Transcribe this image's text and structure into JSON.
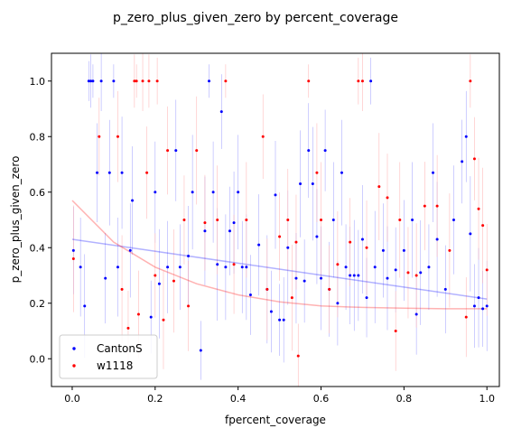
{
  "chart_data": {
    "type": "scatter",
    "title": "p_zero_plus_given_zero by percent_coverage",
    "xlabel": "fpercent_coverage",
    "ylabel": "p_zero_plus_given_zero",
    "xlim": [
      -0.05,
      1.03
    ],
    "ylim": [
      -0.1,
      1.1
    ],
    "xticks": [
      0.0,
      0.2,
      0.4,
      0.6,
      0.8,
      1.0
    ],
    "xtick_labels": [
      "0.0",
      "0.2",
      "0.4",
      "0.6",
      "0.8",
      "1.0"
    ],
    "yticks": [
      0.0,
      0.2,
      0.4,
      0.6,
      0.8,
      1.0
    ],
    "ytick_labels": [
      "0.0",
      "0.2",
      "0.4",
      "0.6",
      "0.8",
      "1.0"
    ],
    "grid": false,
    "legend": {
      "placement": "lower-left",
      "entries": [
        "CantonS",
        "w1118"
      ]
    },
    "series": [
      {
        "name": "CantonS",
        "color": "#0000ff",
        "errorbar_color": "#9999ff",
        "x": [
          0.003,
          0.02,
          0.03,
          0.04,
          0.045,
          0.05,
          0.06,
          0.07,
          0.08,
          0.09,
          0.1,
          0.11,
          0.12,
          0.14,
          0.145,
          0.19,
          0.2,
          0.21,
          0.23,
          0.25,
          0.26,
          0.28,
          0.29,
          0.31,
          0.32,
          0.33,
          0.34,
          0.35,
          0.36,
          0.37,
          0.38,
          0.39,
          0.4,
          0.41,
          0.42,
          0.43,
          0.45,
          0.47,
          0.48,
          0.49,
          0.5,
          0.51,
          0.52,
          0.54,
          0.55,
          0.56,
          0.57,
          0.58,
          0.59,
          0.6,
          0.61,
          0.62,
          0.63,
          0.64,
          0.65,
          0.66,
          0.67,
          0.68,
          0.69,
          0.7,
          0.71,
          0.72,
          0.73,
          0.75,
          0.76,
          0.78,
          0.8,
          0.82,
          0.83,
          0.84,
          0.86,
          0.87,
          0.88,
          0.9,
          0.92,
          0.94,
          0.95,
          0.96,
          0.97,
          0.98,
          0.99,
          1.0
        ],
        "y": [
          0.39,
          0.33,
          0.19,
          1.0,
          1.0,
          1.0,
          0.67,
          1.0,
          0.29,
          0.67,
          1.0,
          0.33,
          0.67,
          0.39,
          0.57,
          0.15,
          0.6,
          0.27,
          0.33,
          0.75,
          0.33,
          0.37,
          0.6,
          0.03,
          0.46,
          1.0,
          0.6,
          0.34,
          0.89,
          0.33,
          0.46,
          0.49,
          0.6,
          0.33,
          0.33,
          0.23,
          0.41,
          0.25,
          0.17,
          0.59,
          0.14,
          0.14,
          0.4,
          0.29,
          0.63,
          0.28,
          0.75,
          0.63,
          0.44,
          0.29,
          0.75,
          0.25,
          0.5,
          0.2,
          0.67,
          0.33,
          0.3,
          0.3,
          0.3,
          0.43,
          0.22,
          1.0,
          0.33,
          0.39,
          0.29,
          0.32,
          0.39,
          0.5,
          0.16,
          0.31,
          0.33,
          0.67,
          0.43,
          0.25,
          0.5,
          0.71,
          0.8,
          0.45,
          0.19,
          0.22,
          0.18,
          0.19
        ],
        "fit_line": {
          "x": [
            0.0,
            1.0
          ],
          "y": [
            0.43,
            0.215
          ]
        }
      },
      {
        "name": "w1118",
        "color": "#ff0000",
        "errorbar_color": "#ffaaaa",
        "x": [
          0.003,
          0.065,
          0.11,
          0.12,
          0.135,
          0.15,
          0.155,
          0.16,
          0.17,
          0.18,
          0.185,
          0.2,
          0.205,
          0.22,
          0.23,
          0.245,
          0.27,
          0.28,
          0.3,
          0.32,
          0.35,
          0.37,
          0.39,
          0.42,
          0.46,
          0.47,
          0.5,
          0.52,
          0.53,
          0.54,
          0.545,
          0.57,
          0.59,
          0.6,
          0.62,
          0.64,
          0.67,
          0.69,
          0.7,
          0.71,
          0.74,
          0.76,
          0.78,
          0.79,
          0.81,
          0.83,
          0.85,
          0.88,
          0.91,
          0.95,
          0.96,
          0.97,
          0.98,
          0.99,
          1.0
        ],
        "y": [
          0.36,
          0.8,
          0.8,
          0.25,
          0.11,
          1.0,
          1.0,
          0.16,
          1.0,
          0.67,
          1.0,
          0.3,
          1.0,
          0.14,
          0.75,
          0.28,
          0.5,
          0.19,
          0.75,
          0.49,
          0.5,
          1.0,
          0.34,
          0.5,
          0.8,
          0.25,
          0.44,
          0.5,
          0.22,
          0.42,
          0.01,
          1.0,
          0.67,
          0.5,
          0.25,
          0.34,
          0.42,
          1.0,
          1.0,
          0.4,
          0.62,
          0.58,
          0.1,
          0.5,
          0.31,
          0.3,
          0.55,
          0.55,
          0.39,
          0.15,
          1.0,
          0.72,
          0.54,
          0.48,
          0.32
        ],
        "fit_line": {
          "x": [
            0.0,
            0.1,
            0.2,
            0.3,
            0.4,
            0.5,
            0.6,
            0.7,
            0.8,
            0.9,
            1.0
          ],
          "y": [
            0.57,
            0.42,
            0.33,
            0.27,
            0.23,
            0.205,
            0.19,
            0.185,
            0.182,
            0.18,
            0.18
          ]
        }
      }
    ]
  }
}
